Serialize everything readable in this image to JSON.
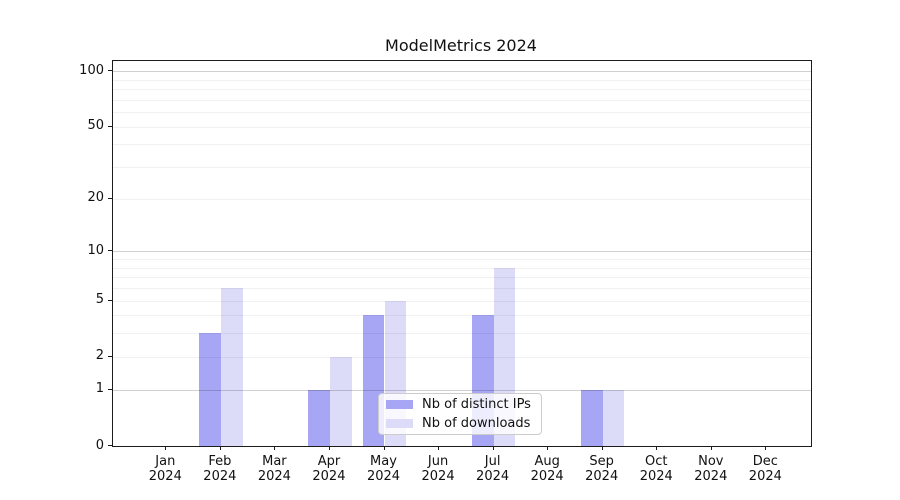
{
  "chart_data": {
    "type": "bar",
    "title": "ModelMetrics 2024",
    "categories": [
      "Jan\n2024",
      "Feb\n2024",
      "Mar\n2024",
      "Apr\n2024",
      "May\n2024",
      "Jun\n2024",
      "Jul\n2024",
      "Aug\n2024",
      "Sep\n2024",
      "Oct\n2024",
      "Nov\n2024",
      "Dec\n2024"
    ],
    "series": [
      {
        "name": "Nb of distinct IPs",
        "color": "#a6a6f4",
        "values": [
          0,
          3,
          0,
          1,
          4,
          0,
          4,
          0,
          1,
          0,
          0,
          0
        ]
      },
      {
        "name": "Nb of downloads",
        "color": "#dcdcf9",
        "values": [
          0,
          6,
          0,
          2,
          5,
          0,
          8,
          0,
          1,
          0,
          0,
          0
        ]
      }
    ],
    "xlabel": "",
    "ylabel": "",
    "yscale": "log1p",
    "yticks": [
      0,
      1,
      2,
      5,
      10,
      20,
      50,
      100
    ],
    "major_grid_values": [
      1,
      10,
      100
    ],
    "minor_grid_values": [
      2,
      3,
      4,
      5,
      6,
      7,
      8,
      9,
      20,
      30,
      40,
      50,
      60,
      70,
      80,
      90
    ],
    "ylim": [
      0,
      113.6
    ],
    "grid": true,
    "legend_position": "lower center"
  }
}
